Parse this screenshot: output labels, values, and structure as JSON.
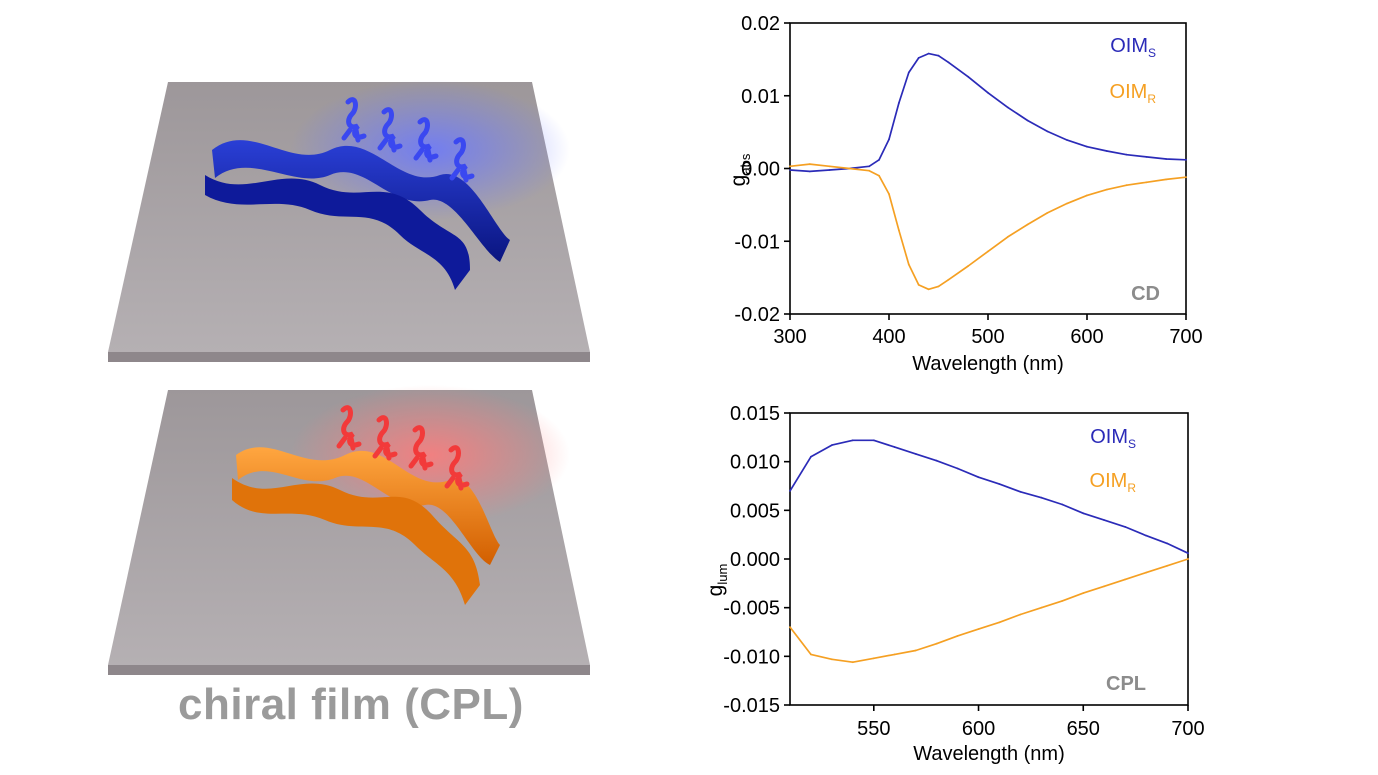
{
  "caption": "chiral film (CPL)",
  "colors": {
    "blue": "#2b2bb8",
    "orange": "#f5a023",
    "tag_gray": "#8c8c8c"
  },
  "chart_data": [
    {
      "type": "line",
      "tag": "CD",
      "xlabel": "Wavelength (nm)",
      "ylabel": {
        "main": "g",
        "sub": "abs"
      },
      "xlim": [
        300,
        700
      ],
      "ylim": [
        -0.02,
        0.02
      ],
      "x_ticks": [
        "300",
        "400",
        "500",
        "600",
        "700"
      ],
      "y_ticks": [
        "0.02",
        "0.01",
        "0.00",
        "-0.01",
        "-0.02"
      ],
      "legend": [
        {
          "main": "OIM",
          "sub": "S",
          "color": "#2b2bb8"
        },
        {
          "main": "OIM",
          "sub": "R",
          "color": "#f5a023"
        }
      ],
      "grid": false,
      "series": [
        {
          "color": "#2b2bb8",
          "x": [
            300,
            320,
            340,
            360,
            380,
            390,
            400,
            410,
            420,
            430,
            440,
            450,
            460,
            480,
            500,
            520,
            540,
            560,
            580,
            600,
            620,
            640,
            660,
            680,
            700
          ],
          "y": [
            -0.0002,
            -0.0004,
            -0.0002,
            0.0,
            0.0003,
            0.0012,
            0.004,
            0.009,
            0.0132,
            0.0152,
            0.0158,
            0.0155,
            0.0146,
            0.0126,
            0.0104,
            0.0084,
            0.0066,
            0.0051,
            0.0039,
            0.003,
            0.0024,
            0.0019,
            0.0016,
            0.0013,
            0.0012
          ]
        },
        {
          "color": "#f5a023",
          "x": [
            300,
            320,
            340,
            360,
            380,
            390,
            400,
            410,
            420,
            430,
            440,
            450,
            460,
            480,
            500,
            520,
            540,
            560,
            580,
            600,
            620,
            640,
            660,
            680,
            700
          ],
          "y": [
            0.0003,
            0.0006,
            0.0003,
            0.0,
            -0.0003,
            -0.001,
            -0.0035,
            -0.0085,
            -0.0132,
            -0.016,
            -0.0166,
            -0.0162,
            -0.0153,
            -0.0134,
            -0.0114,
            -0.0094,
            -0.0077,
            -0.0061,
            -0.0048,
            -0.0037,
            -0.0029,
            -0.0023,
            -0.0019,
            -0.0015,
            -0.0012
          ]
        }
      ]
    },
    {
      "type": "line",
      "tag": "CPL",
      "xlabel": "Wavelength (nm)",
      "ylabel": {
        "main": "g",
        "sub": "lum"
      },
      "xlim": [
        510,
        700
      ],
      "ylim": [
        -0.015,
        0.015
      ],
      "x_ticks": [
        "550",
        "600",
        "650",
        "700"
      ],
      "y_ticks": [
        "0.015",
        "0.010",
        "0.005",
        "0.000",
        "-0.005",
        "-0.010",
        "-0.015"
      ],
      "legend": [
        {
          "main": "OIM",
          "sub": "S",
          "color": "#2b2bb8"
        },
        {
          "main": "OIM",
          "sub": "R",
          "color": "#f5a023"
        }
      ],
      "grid": false,
      "series": [
        {
          "color": "#2b2bb8",
          "x": [
            510,
            520,
            530,
            540,
            550,
            560,
            570,
            580,
            590,
            600,
            610,
            620,
            630,
            640,
            650,
            660,
            670,
            680,
            690,
            700
          ],
          "y": [
            0.007,
            0.0105,
            0.0117,
            0.0122,
            0.0122,
            0.0115,
            0.0108,
            0.0101,
            0.0093,
            0.0084,
            0.0077,
            0.0069,
            0.0063,
            0.0056,
            0.0047,
            0.004,
            0.0033,
            0.0024,
            0.0016,
            0.0006
          ]
        },
        {
          "color": "#f5a023",
          "x": [
            510,
            520,
            530,
            540,
            550,
            560,
            570,
            580,
            590,
            600,
            610,
            620,
            630,
            640,
            650,
            660,
            670,
            680,
            690,
            700
          ],
          "y": [
            -0.007,
            -0.0098,
            -0.0103,
            -0.0106,
            -0.0102,
            -0.0098,
            -0.0094,
            -0.0087,
            -0.0079,
            -0.0072,
            -0.0065,
            -0.0057,
            -0.005,
            -0.0043,
            -0.0035,
            -0.0028,
            -0.0021,
            -0.0014,
            -0.0007,
            0.0
          ]
        }
      ]
    }
  ]
}
